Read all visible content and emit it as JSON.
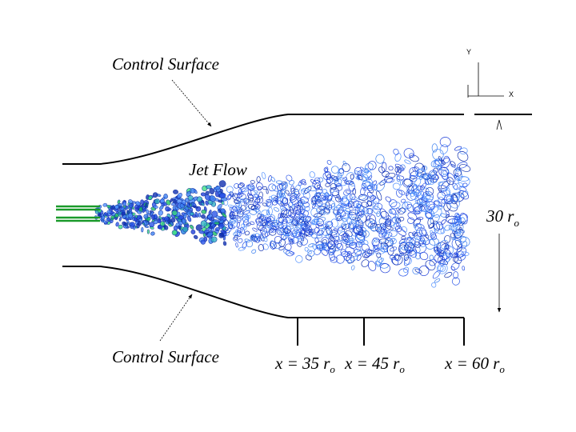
{
  "diagram": {
    "axes": {
      "y_label": "Y",
      "x_label": "X"
    },
    "labels": {
      "control_surface_top": "Control Surface",
      "control_surface_bottom": "Control Surface",
      "jet_flow": "Jet Flow",
      "height": {
        "text": "30 r",
        "subscript": "o"
      }
    },
    "stations": [
      {
        "text": "x = 35 r",
        "subscript": "o"
      },
      {
        "text": "x = 45 r",
        "subscript": "o"
      },
      {
        "text": "x = 60 r",
        "subscript": "o"
      }
    ]
  }
}
